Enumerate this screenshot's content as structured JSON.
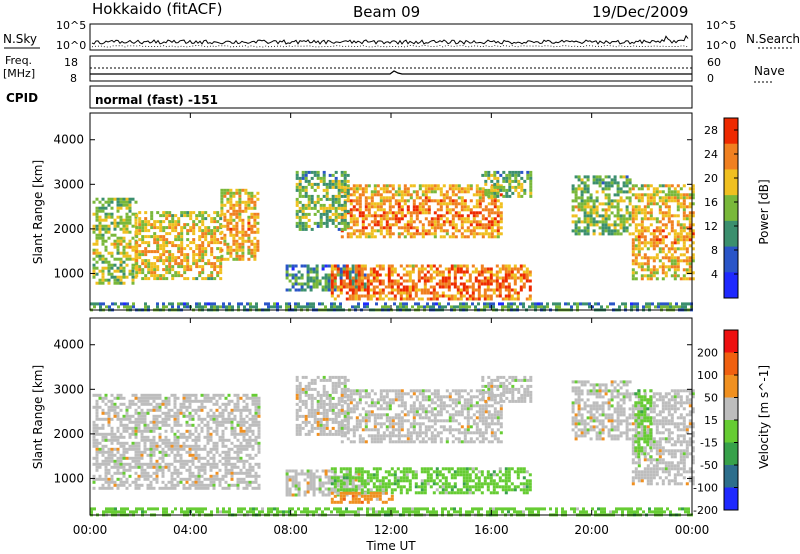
{
  "header": {
    "station": "Hokkaido (fitACF)",
    "beam": "Beam 09",
    "date": "19/Dec/2009"
  },
  "top_panels": {
    "nsky_label": "N.Sky",
    "nsky_ticks": [
      "10^5",
      "10^0"
    ],
    "nsearch_label": "N.Search",
    "nsearch_ticks": [
      "10^5",
      "10^0"
    ],
    "freq_label": "Freq.",
    "freq_unit": "[MHz]",
    "freq_ticks": [
      "18",
      "8"
    ],
    "nave_label": "Nave",
    "nave_ticks": [
      "60",
      "0"
    ],
    "cpid_label": "CPID",
    "cpid_text": "normal (fast) -151"
  },
  "chart_data": [
    {
      "type": "heatmap",
      "name": "power",
      "ylabel": "Slant Range [km]",
      "ylim": [
        180,
        4600
      ],
      "yticks": [
        "1000",
        "2000",
        "3000",
        "4000"
      ],
      "ytick_values": [
        1000,
        2000,
        3000,
        4000
      ],
      "colorbar_label": "Power [dB]",
      "colorbar_ticks": [
        "4",
        "8",
        "12",
        "16",
        "20",
        "24",
        "28"
      ],
      "colorbar_tick_values": [
        4,
        8,
        12,
        16,
        20,
        24,
        28
      ],
      "colorbar_range": [
        0,
        30
      ],
      "colors": [
        "#1f29ff",
        "#2a55c8",
        "#3b8f6e",
        "#79b83a",
        "#f0c020",
        "#f08020",
        "#ee2a00"
      ],
      "regions": [
        {
          "t0": 0.1,
          "t1": 1.8,
          "r0": 800,
          "r1": 2700,
          "level": 14
        },
        {
          "t0": 1.8,
          "t1": 5.2,
          "r0": 900,
          "r1": 2400,
          "level": 17
        },
        {
          "t0": 5.2,
          "t1": 6.7,
          "r0": 1300,
          "r1": 2900,
          "level": 18
        },
        {
          "t0": 7.8,
          "t1": 11.0,
          "r0": 600,
          "r1": 1200,
          "level": 8
        },
        {
          "t0": 9.6,
          "t1": 17.5,
          "r0": 450,
          "r1": 1200,
          "level": 22
        },
        {
          "t0": 10.0,
          "t1": 16.4,
          "r0": 1800,
          "r1": 3000,
          "level": 20
        },
        {
          "t0": 8.2,
          "t1": 10.3,
          "r0": 2000,
          "r1": 3300,
          "level": 12
        },
        {
          "t0": 15.6,
          "t1": 17.6,
          "r0": 2700,
          "r1": 3300,
          "level": 12
        },
        {
          "t0": 19.2,
          "t1": 21.5,
          "r0": 1900,
          "r1": 3200,
          "level": 13
        },
        {
          "t0": 21.6,
          "t1": 24.0,
          "r0": 900,
          "r1": 3000,
          "level": 18
        },
        {
          "t0": 0.0,
          "t1": 24.0,
          "r0": 180,
          "r1": 350,
          "level": 9
        }
      ]
    },
    {
      "type": "heatmap",
      "name": "velocity",
      "ylabel": "Slant Range [km]",
      "xlabel": "Time UT",
      "xlim": [
        0,
        24
      ],
      "xticks": [
        "00:00",
        "04:00",
        "08:00",
        "12:00",
        "16:00",
        "20:00",
        "00:00"
      ],
      "xtick_values": [
        0,
        4,
        8,
        12,
        16,
        20,
        24
      ],
      "ylim": [
        180,
        4600
      ],
      "yticks": [
        "1000",
        "2000",
        "3000",
        "4000"
      ],
      "ytick_values": [
        1000,
        2000,
        3000,
        4000
      ],
      "colorbar_label": "Velocity [m s^-1]",
      "colorbar_ticks": [
        "200",
        "100",
        "50",
        "15",
        "-15",
        "-50",
        "-100",
        "-200"
      ],
      "colors": [
        "#1f29ff",
        "#2d6e8c",
        "#37a14a",
        "#66cc33",
        "#bdbdbd",
        "#f09020",
        "#f06010",
        "#ee1010"
      ],
      "regions": [
        {
          "t0": 0.1,
          "t1": 6.7,
          "r0": 800,
          "r1": 2900,
          "level": "gray"
        },
        {
          "t0": 7.8,
          "t1": 11.0,
          "r0": 600,
          "r1": 1200,
          "level": "gray"
        },
        {
          "t0": 9.6,
          "t1": 17.5,
          "r0": 650,
          "r1": 1250,
          "level": "green"
        },
        {
          "t0": 9.6,
          "t1": 12.0,
          "r0": 450,
          "r1": 700,
          "level": "orange"
        },
        {
          "t0": 10.0,
          "t1": 16.4,
          "r0": 1800,
          "r1": 3000,
          "level": "gray"
        },
        {
          "t0": 8.2,
          "t1": 10.3,
          "r0": 2000,
          "r1": 3300,
          "level": "gray"
        },
        {
          "t0": 15.6,
          "t1": 17.6,
          "r0": 2700,
          "r1": 3300,
          "level": "gray"
        },
        {
          "t0": 19.2,
          "t1": 21.5,
          "r0": 1900,
          "r1": 3200,
          "level": "gray"
        },
        {
          "t0": 21.6,
          "t1": 24.0,
          "r0": 900,
          "r1": 3000,
          "level": "gray"
        },
        {
          "t0": 21.7,
          "t1": 22.4,
          "r0": 1500,
          "r1": 3000,
          "level": "green"
        },
        {
          "t0": 0.0,
          "t1": 24.0,
          "r0": 180,
          "r1": 350,
          "level": "green"
        }
      ]
    }
  ]
}
